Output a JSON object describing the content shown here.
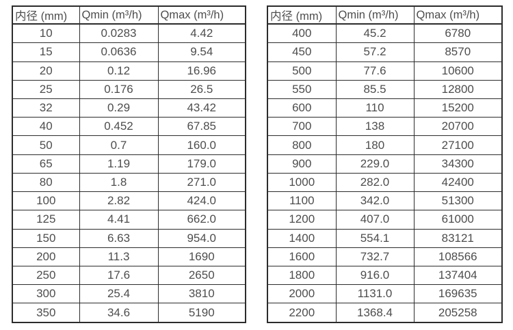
{
  "page": {
    "description_labels": {
      "diameter_header": "内径 (mm)",
      "qmin_header": "Qmin (m³/h)",
      "qmax_header": "Qmax (m³/h)"
    }
  },
  "colors": {
    "background": "#ffffff",
    "border": "#2b2b2b",
    "text": "#4d4d4d"
  },
  "tables": [
    {
      "id": "small-diameters",
      "headers": [
        "内径 (mm)",
        "Qmin (m³/h)",
        "Qmax (m³/h)"
      ],
      "rows": [
        [
          "10",
          "0.0283",
          "4.42"
        ],
        [
          "15",
          "0.0636",
          "9.54"
        ],
        [
          "20",
          "0.12",
          "16.96"
        ],
        [
          "25",
          "0.176",
          "26.5"
        ],
        [
          "32",
          "0.29",
          "43.42"
        ],
        [
          "40",
          "0.452",
          "67.85"
        ],
        [
          "50",
          "0.7",
          "160.0"
        ],
        [
          "65",
          "1.19",
          "179.0"
        ],
        [
          "80",
          "1.8",
          "271.0"
        ],
        [
          "100",
          "2.82",
          "424.0"
        ],
        [
          "125",
          "4.41",
          "662.0"
        ],
        [
          "150",
          "6.63",
          "954.0"
        ],
        [
          "200",
          "11.3",
          "1690"
        ],
        [
          "250",
          "17.6",
          "2650"
        ],
        [
          "300",
          "25.4",
          "3810"
        ],
        [
          "350",
          "34.6",
          "5190"
        ]
      ]
    },
    {
      "id": "large-diameters",
      "headers": [
        "内径 (mm)",
        "Qmin (m³/h)",
        "Qmax (m³/h)"
      ],
      "rows": [
        [
          "400",
          "45.2",
          "6780"
        ],
        [
          "450",
          "57.2",
          "8570"
        ],
        [
          "500",
          "77.6",
          "10600"
        ],
        [
          "550",
          "85.5",
          "12800"
        ],
        [
          "600",
          "110",
          "15200"
        ],
        [
          "700",
          "138",
          "20700"
        ],
        [
          "800",
          "180",
          "27100"
        ],
        [
          "900",
          "229.0",
          "34300"
        ],
        [
          "1000",
          "282.0",
          "42400"
        ],
        [
          "1100",
          "342.0",
          "51300"
        ],
        [
          "1200",
          "407.0",
          "61000"
        ],
        [
          "1400",
          "554.1",
          "83121"
        ],
        [
          "1600",
          "732.7",
          "108566"
        ],
        [
          "1800",
          "916.0",
          "137404"
        ],
        [
          "2000",
          "1131.0",
          "169635"
        ],
        [
          "2200",
          "1368.4",
          "205258"
        ]
      ]
    }
  ]
}
